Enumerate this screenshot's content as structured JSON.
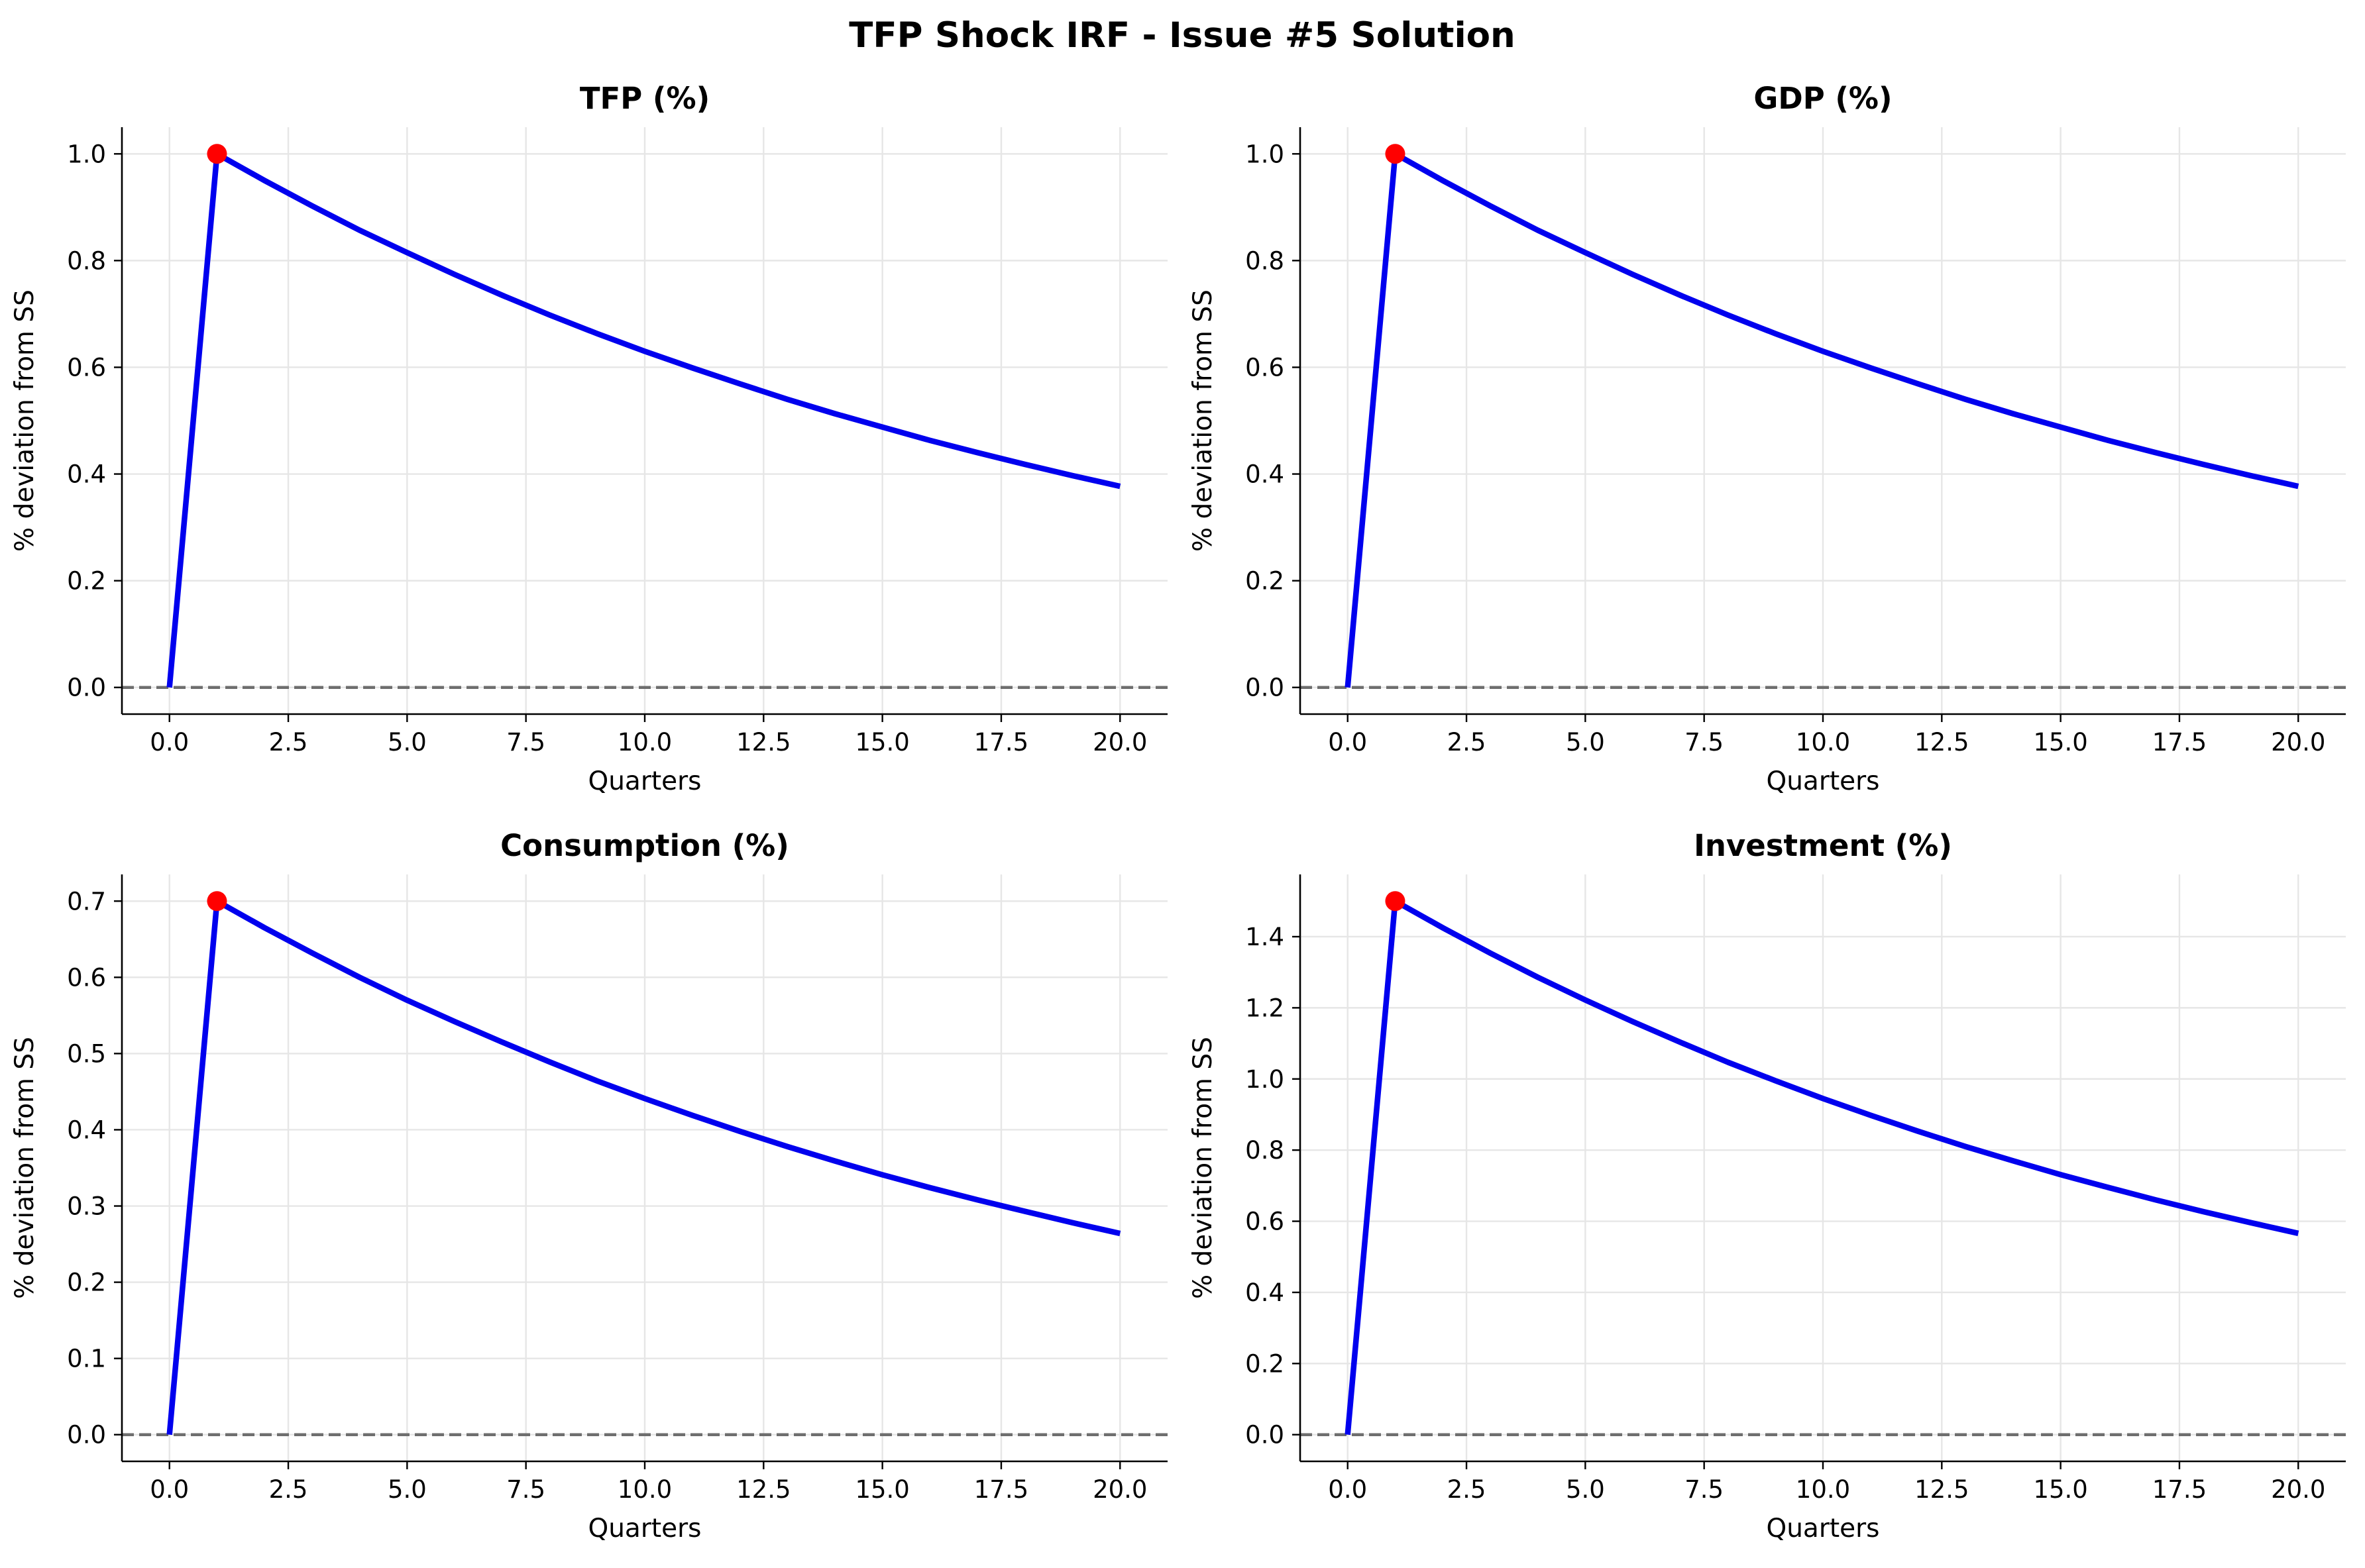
{
  "figure": {
    "title": "TFP Shock IRF - Issue #5 Solution"
  },
  "chart_data": [
    {
      "type": "line",
      "title": "TFP (%)",
      "xlabel": "Quarters",
      "ylabel": "% deviation from SS",
      "xlim": [
        -1,
        21
      ],
      "ylim": [
        -0.05,
        1.05
      ],
      "xticks": [
        "0.0",
        "2.5",
        "5.0",
        "7.5",
        "10.0",
        "12.5",
        "15.0",
        "17.5",
        "20.0"
      ],
      "yticks": [
        "0.0",
        "0.2",
        "0.4",
        "0.6",
        "0.8",
        "1.0"
      ],
      "grid": true,
      "zero_line": true,
      "line_color": "#0000ee",
      "peak_color": "#ff0000",
      "x": [
        0,
        1,
        2,
        3,
        4,
        5,
        6,
        7,
        8,
        9,
        10,
        11,
        12,
        13,
        14,
        15,
        16,
        17,
        18,
        19,
        20
      ],
      "values": [
        0.0,
        1.0,
        0.95,
        0.9025,
        0.857,
        0.815,
        0.774,
        0.735,
        0.698,
        0.663,
        0.63,
        0.599,
        0.569,
        0.54,
        0.513,
        0.488,
        0.463,
        0.44,
        0.418,
        0.397,
        0.377
      ],
      "peak": {
        "x": 1,
        "y": 1.0
      }
    },
    {
      "type": "line",
      "title": "GDP (%)",
      "xlabel": "Quarters",
      "ylabel": "% deviation from SS",
      "xlim": [
        -1,
        21
      ],
      "ylim": [
        -0.05,
        1.05
      ],
      "xticks": [
        "0.0",
        "2.5",
        "5.0",
        "7.5",
        "10.0",
        "12.5",
        "15.0",
        "17.5",
        "20.0"
      ],
      "yticks": [
        "0.0",
        "0.2",
        "0.4",
        "0.6",
        "0.8",
        "1.0"
      ],
      "grid": true,
      "zero_line": true,
      "line_color": "#0000ee",
      "peak_color": "#ff0000",
      "x": [
        0,
        1,
        2,
        3,
        4,
        5,
        6,
        7,
        8,
        9,
        10,
        11,
        12,
        13,
        14,
        15,
        16,
        17,
        18,
        19,
        20
      ],
      "values": [
        0.0,
        1.0,
        0.95,
        0.9025,
        0.857,
        0.815,
        0.774,
        0.735,
        0.698,
        0.663,
        0.63,
        0.599,
        0.569,
        0.54,
        0.513,
        0.488,
        0.463,
        0.44,
        0.418,
        0.397,
        0.377
      ],
      "peak": {
        "x": 1,
        "y": 1.0
      }
    },
    {
      "type": "line",
      "title": "Consumption (%)",
      "xlabel": "Quarters",
      "ylabel": "% deviation from SS",
      "xlim": [
        -1,
        21
      ],
      "ylim": [
        -0.035,
        0.735
      ],
      "xticks": [
        "0.0",
        "2.5",
        "5.0",
        "7.5",
        "10.0",
        "12.5",
        "15.0",
        "17.5",
        "20.0"
      ],
      "yticks": [
        "0.0",
        "0.1",
        "0.2",
        "0.3",
        "0.4",
        "0.5",
        "0.6",
        "0.7"
      ],
      "grid": true,
      "zero_line": true,
      "line_color": "#0000ee",
      "peak_color": "#ff0000",
      "x": [
        0,
        1,
        2,
        3,
        4,
        5,
        6,
        7,
        8,
        9,
        10,
        11,
        12,
        13,
        14,
        15,
        16,
        17,
        18,
        19,
        20
      ],
      "values": [
        0.0,
        0.7,
        0.665,
        0.632,
        0.6,
        0.57,
        0.542,
        0.515,
        0.489,
        0.464,
        0.441,
        0.419,
        0.398,
        0.378,
        0.359,
        0.341,
        0.324,
        0.308,
        0.293,
        0.278,
        0.264
      ],
      "peak": {
        "x": 1,
        "y": 0.7
      }
    },
    {
      "type": "line",
      "title": "Investment (%)",
      "xlabel": "Quarters",
      "ylabel": "% deviation from SS",
      "xlim": [
        -1,
        21
      ],
      "ylim": [
        -0.075,
        1.575
      ],
      "xticks": [
        "0.0",
        "2.5",
        "5.0",
        "7.5",
        "10.0",
        "12.5",
        "15.0",
        "17.5",
        "20.0"
      ],
      "yticks": [
        "0.0",
        "0.2",
        "0.4",
        "0.6",
        "0.8",
        "1.0",
        "1.2",
        "1.4"
      ],
      "grid": true,
      "zero_line": true,
      "line_color": "#0000ee",
      "peak_color": "#ff0000",
      "x": [
        0,
        1,
        2,
        3,
        4,
        5,
        6,
        7,
        8,
        9,
        10,
        11,
        12,
        13,
        14,
        15,
        16,
        17,
        18,
        19,
        20
      ],
      "values": [
        0.0,
        1.5,
        1.425,
        1.354,
        1.286,
        1.222,
        1.161,
        1.103,
        1.047,
        0.995,
        0.945,
        0.898,
        0.853,
        0.81,
        0.77,
        0.731,
        0.695,
        0.66,
        0.627,
        0.596,
        0.566
      ],
      "peak": {
        "x": 1,
        "y": 1.5
      }
    }
  ]
}
